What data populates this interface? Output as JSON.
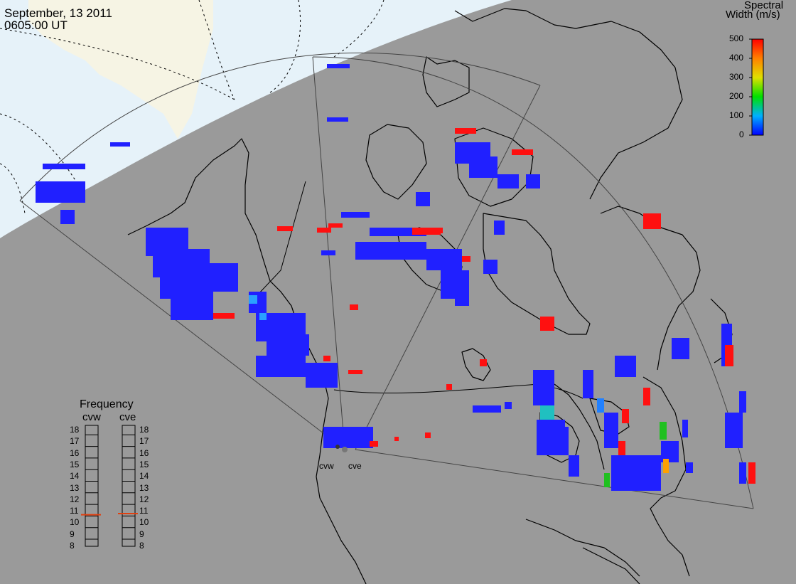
{
  "header": {
    "date": "September, 13 2011",
    "time": "0605:00 UT"
  },
  "colorbar": {
    "title_line1": "Spectral",
    "title_line2": "Width (m/s)",
    "ticks": [
      "500",
      "400",
      "300",
      "200",
      "100",
      "0"
    ]
  },
  "frequency_panel": {
    "title": "Frequency",
    "radars": [
      "cvw",
      "cve"
    ],
    "ticks": [
      "18",
      "17",
      "16",
      "15",
      "14",
      "13",
      "12",
      "11",
      "10",
      "9",
      "8"
    ],
    "cvw_level_mhz": 10.6,
    "cve_level_mhz": 10.7
  },
  "radar_labels": [
    "cvw",
    "cve"
  ],
  "colors": {
    "background": "#9a9a9a",
    "daylight_land": "#f6f4e4",
    "daylight_sea": "#e6f2f9",
    "frequency_marker": "#e04010",
    "scatter_low": "#2020ff",
    "scatter_high": "#ff1010"
  }
}
